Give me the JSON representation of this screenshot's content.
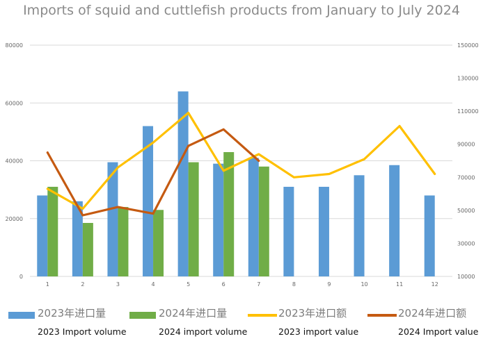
{
  "chart_data": {
    "type": "bar+line",
    "title": "Imports of squid and cuttlefish products from January to July 2024",
    "categories": [
      "1",
      "2",
      "3",
      "4",
      "5",
      "6",
      "7",
      "8",
      "9",
      "10",
      "11",
      "12"
    ],
    "ylim_left": [
      0,
      80000
    ],
    "ylim_right": [
      10000,
      150000
    ],
    "yticks_left": [
      "0",
      "20000",
      "40000",
      "60000",
      "80000"
    ],
    "yticks_right": [
      "10000",
      "30000",
      "50000",
      "70000",
      "90000",
      "110000",
      "130000",
      "150000"
    ],
    "grid": true,
    "legend_position": "bottom",
    "series": [
      {
        "name": "2023年进口量",
        "subtitle": "2023 Import volume",
        "type": "bar",
        "axis": "left",
        "color": "#5b9bd5",
        "values": [
          28000,
          26000,
          39500,
          52000,
          64000,
          39000,
          41000,
          31000,
          31000,
          35000,
          38500,
          28000
        ]
      },
      {
        "name": "2024年进口量",
        "subtitle": "2024 import volume",
        "type": "bar",
        "axis": "left",
        "color": "#70ad47",
        "values": [
          31000,
          18500,
          24000,
          23000,
          39500,
          43000,
          38000,
          null,
          null,
          null,
          null,
          null
        ]
      },
      {
        "name": "2023年进口额",
        "subtitle": "2023 import value",
        "type": "line",
        "axis": "right",
        "color": "#ffc000",
        "values": [
          63000,
          51000,
          76000,
          91000,
          109000,
          74000,
          84000,
          70000,
          72000,
          81000,
          101000,
          72000
        ]
      },
      {
        "name": "2024年进口额",
        "subtitle": "2024 Import value",
        "type": "line",
        "axis": "right",
        "color": "#c55a11",
        "values": [
          85000,
          47000,
          52000,
          48000,
          89000,
          99000,
          80000,
          null,
          null,
          null,
          null,
          null
        ]
      }
    ]
  }
}
